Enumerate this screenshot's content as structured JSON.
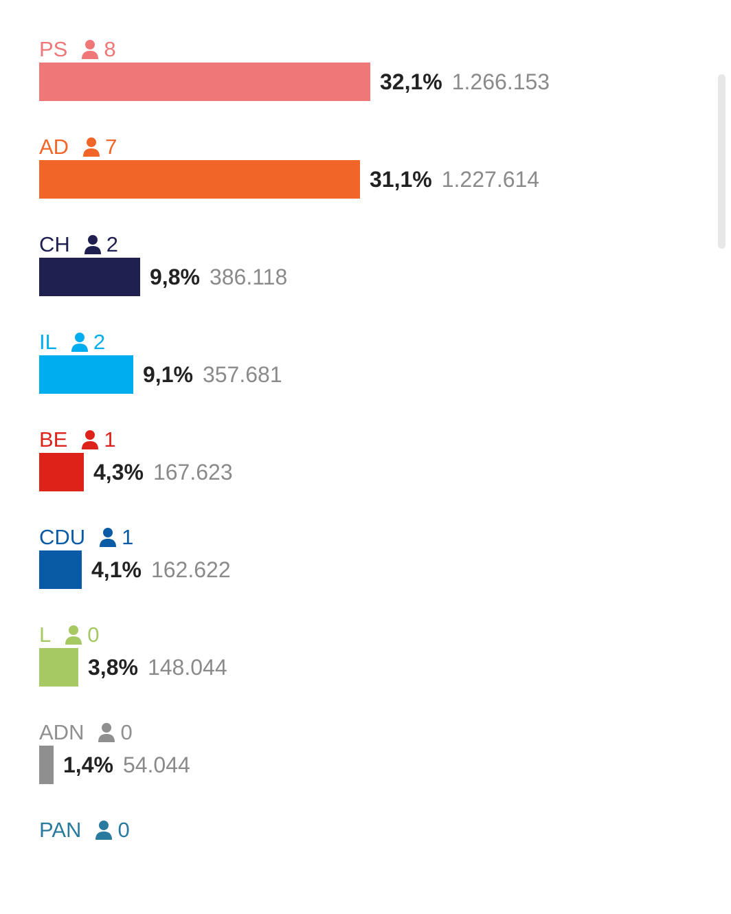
{
  "chart_data": {
    "type": "bar",
    "orientation": "horizontal",
    "parties": [
      {
        "name": "PS",
        "seats": "8",
        "percent_label": "32,1%",
        "votes_label": "1.266.153",
        "value": 32.1,
        "votes": 1266153,
        "color": "#ef7777"
      },
      {
        "name": "AD",
        "seats": "7",
        "percent_label": "31,1%",
        "votes_label": "1.227.614",
        "value": 31.1,
        "votes": 1227614,
        "color": "#f26528"
      },
      {
        "name": "CH",
        "seats": "2",
        "percent_label": "9,8%",
        "votes_label": "386.118",
        "value": 9.8,
        "votes": 386118,
        "color": "#202050"
      },
      {
        "name": "IL",
        "seats": "2",
        "percent_label": "9,1%",
        "votes_label": "357.681",
        "value": 9.1,
        "votes": 357681,
        "color": "#00aeef"
      },
      {
        "name": "BE",
        "seats": "1",
        "percent_label": "4,3%",
        "votes_label": "167.623",
        "value": 4.3,
        "votes": 167623,
        "color": "#dd2219"
      },
      {
        "name": "CDU",
        "seats": "1",
        "percent_label": "4,1%",
        "votes_label": "162.622",
        "value": 4.1,
        "votes": 162622,
        "color": "#0a5ba5"
      },
      {
        "name": "L",
        "seats": "0",
        "percent_label": "3,8%",
        "votes_label": "148.044",
        "value": 3.8,
        "votes": 148044,
        "color": "#a6c963"
      },
      {
        "name": "ADN",
        "seats": "0",
        "percent_label": "1,4%",
        "votes_label": "54.044",
        "value": 1.4,
        "votes": 54044,
        "color": "#8f8f8f"
      },
      {
        "name": "PAN",
        "seats": "0",
        "percent_label": "",
        "votes_label": "",
        "value": null,
        "votes": null,
        "color": "#2a7aa0"
      }
    ]
  }
}
